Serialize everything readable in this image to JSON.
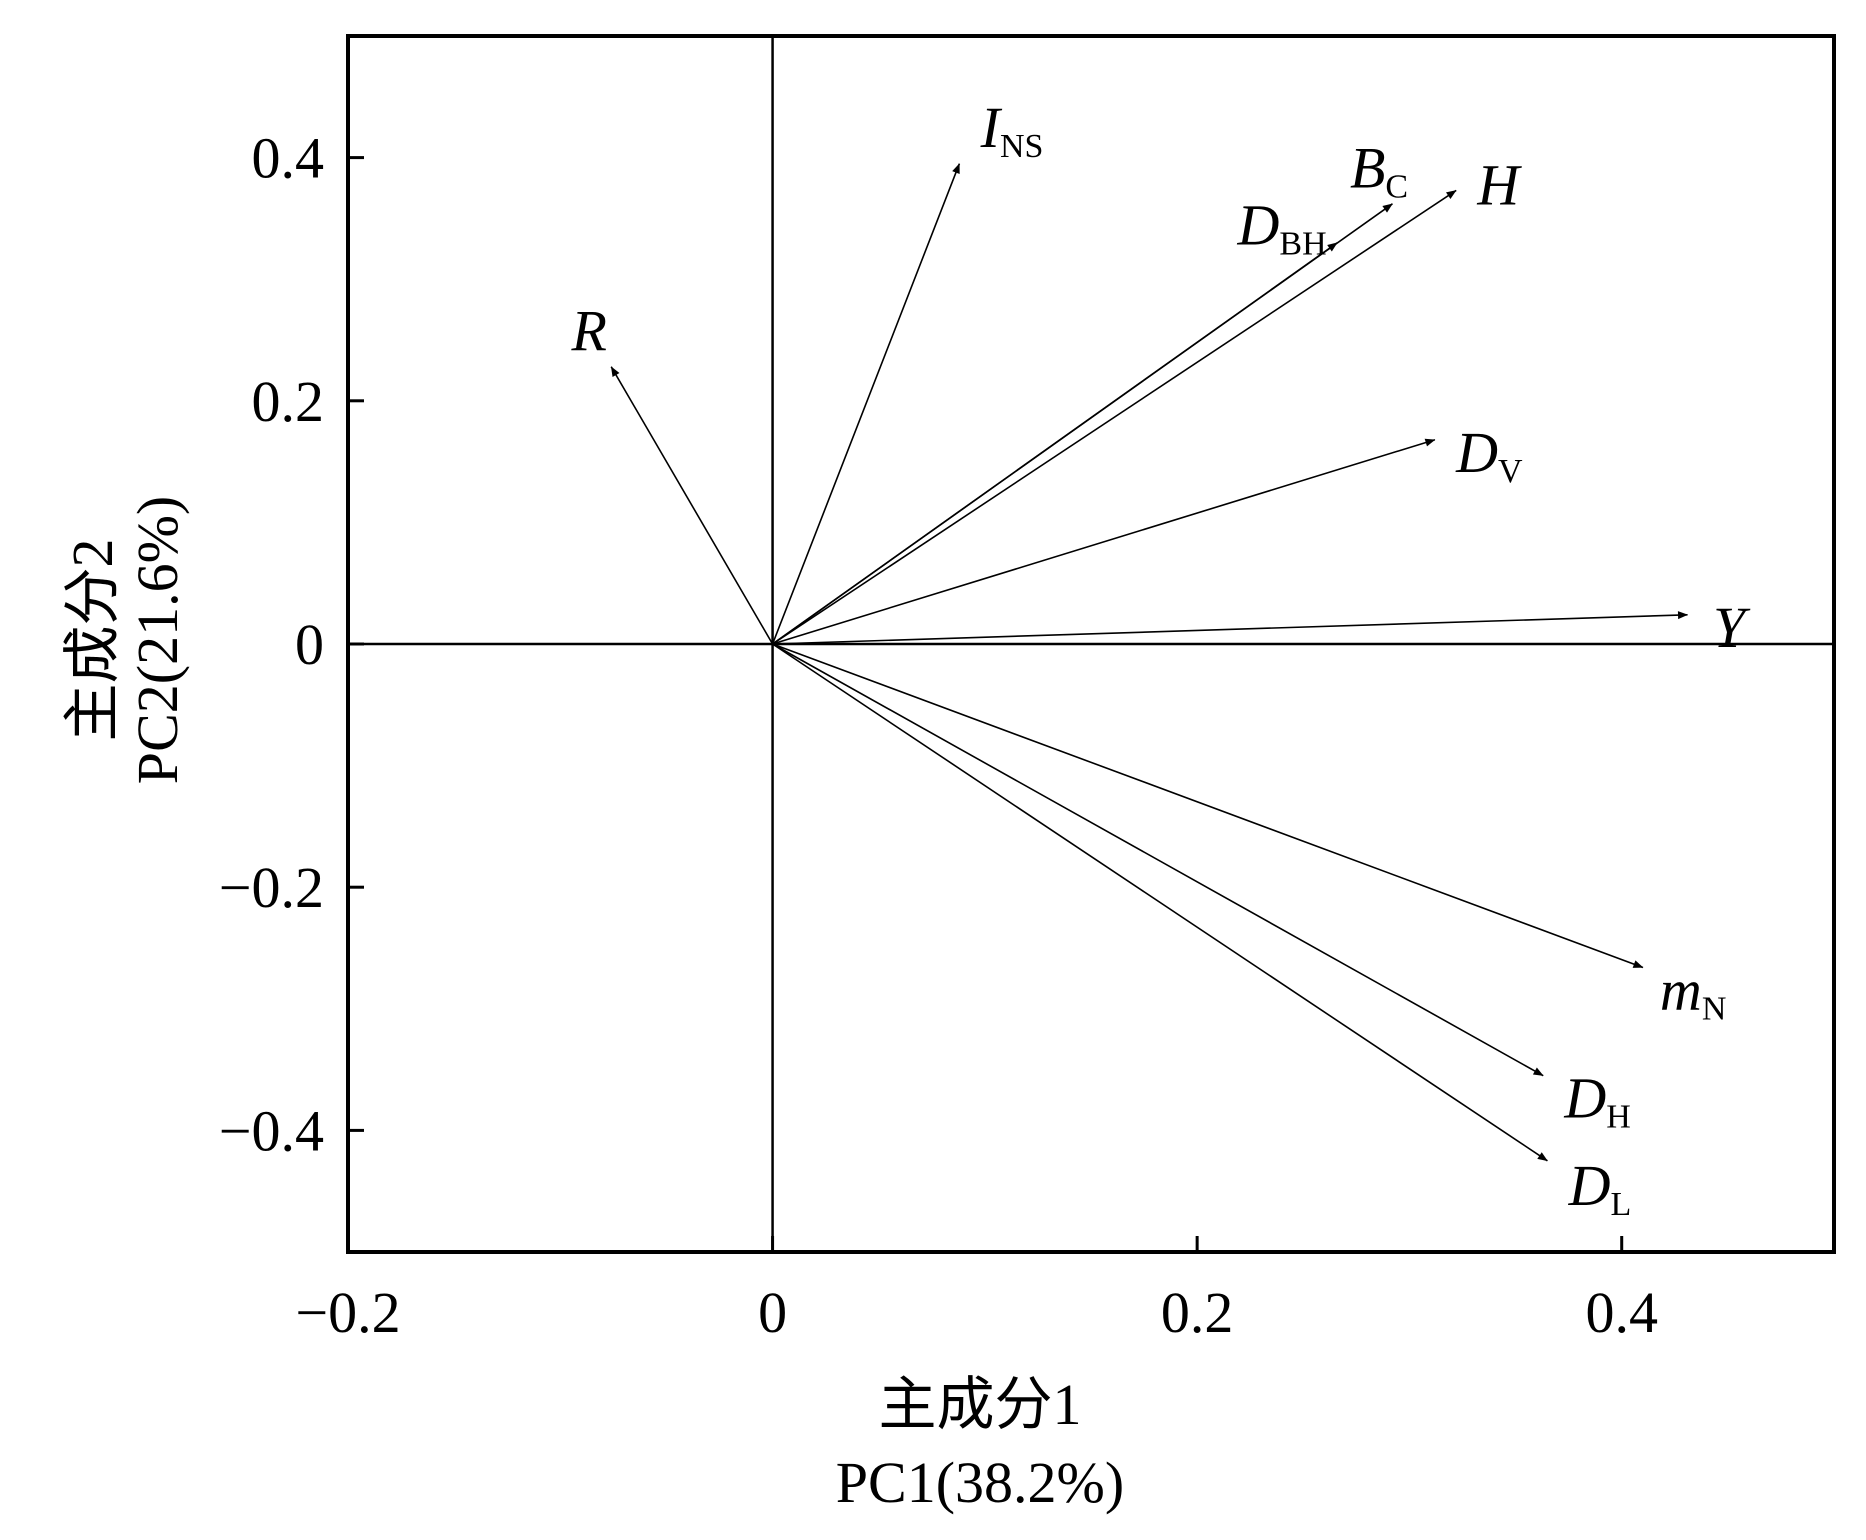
{
  "chart_data": {
    "type": "scatter",
    "subtype": "pca-biplot-loading-vectors",
    "xlabel": "主成分1",
    "xlabel_sub": "PC1(38.2%)",
    "ylabel": "主成分2",
    "ylabel_sub": "PC2(21.6%)",
    "xlim": [
      -0.2,
      0.5
    ],
    "ylim": [
      -0.5,
      0.5
    ],
    "xticks": [
      {
        "value": -0.2,
        "label": "−0.2"
      },
      {
        "value": 0,
        "label": "0"
      },
      {
        "value": 0.2,
        "label": "0.2"
      },
      {
        "value": 0.4,
        "label": "0.4"
      }
    ],
    "yticks": [
      {
        "value": 0.4,
        "label": "0.4"
      },
      {
        "value": 0.2,
        "label": "0.2"
      },
      {
        "value": 0,
        "label": "0"
      },
      {
        "value": -0.2,
        "label": "−0.2"
      },
      {
        "value": -0.4,
        "label": "−0.4"
      }
    ],
    "grid": false,
    "zero_lines": true,
    "vectors": [
      {
        "name": "I",
        "sub": "NS",
        "x": 0.088,
        "y": 0.395,
        "label_anchor": "start",
        "label_dx": 0.01,
        "label_dy": 0.03
      },
      {
        "name": "B",
        "sub": "C",
        "x": 0.292,
        "y": 0.362,
        "label_anchor": "start",
        "label_dx": -0.02,
        "label_dy": 0.03
      },
      {
        "name": "D",
        "sub": "BH",
        "x": 0.266,
        "y": 0.33,
        "label_anchor": "end",
        "label_dx": -0.005,
        "label_dy": 0.015
      },
      {
        "name": "H",
        "sub": "",
        "x": 0.322,
        "y": 0.373,
        "label_anchor": "start",
        "label_dx": 0.01,
        "label_dy": 0.005
      },
      {
        "name": "R",
        "sub": "",
        "x": -0.076,
        "y": 0.228,
        "label_anchor": "end",
        "label_dx": -0.002,
        "label_dy": 0.03
      },
      {
        "name": "D",
        "sub": "V",
        "x": 0.312,
        "y": 0.168,
        "label_anchor": "start",
        "label_dx": 0.01,
        "label_dy": -0.01
      },
      {
        "name": "Y",
        "sub": "",
        "x": 0.431,
        "y": 0.024,
        "label_anchor": "start",
        "label_dx": 0.012,
        "label_dy": -0.01
      },
      {
        "name": "m",
        "sub": "N",
        "x": 0.41,
        "y": -0.266,
        "label_anchor": "start",
        "label_dx": 0.008,
        "label_dy": -0.018
      },
      {
        "name": "D",
        "sub": "H",
        "x": 0.363,
        "y": -0.355,
        "label_anchor": "start",
        "label_dx": 0.01,
        "label_dy": -0.018
      },
      {
        "name": "D",
        "sub": "L",
        "x": 0.365,
        "y": -0.425,
        "label_anchor": "start",
        "label_dx": 0.01,
        "label_dy": -0.02
      }
    ]
  }
}
